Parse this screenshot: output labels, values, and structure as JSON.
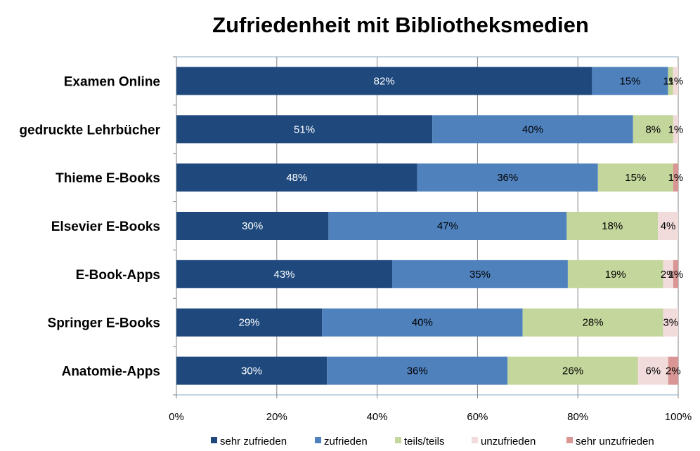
{
  "chart_data": {
    "type": "bar",
    "orientation": "horizontal",
    "stacked": "percent",
    "title": "Zufriedenheit mit Bibliotheksmedien",
    "categories": [
      "Examen Online",
      "gedruckte Lehrbücher",
      "Thieme E-Books",
      "Elsevier E-Books",
      "E-Book-Apps",
      "Springer E-Books",
      "Anatomie-Apps"
    ],
    "series": [
      {
        "name": "sehr zufrieden",
        "color": "#1f497d",
        "label_color": "#ffffff",
        "values": [
          82,
          51,
          48,
          30,
          43,
          29,
          30
        ],
        "labels": [
          "82%",
          "51%",
          "48%",
          "30%",
          "43%",
          "29%",
          "30%"
        ]
      },
      {
        "name": "zufrieden",
        "color": "#4f81bd",
        "label_color": "#000000",
        "values": [
          15,
          40,
          36,
          47,
          35,
          40,
          36
        ],
        "labels": [
          "15%",
          "40%",
          "36%",
          "47%",
          "35%",
          "40%",
          "36%"
        ]
      },
      {
        "name": "teils/teils",
        "color": "#c3d69b",
        "label_color": "#000000",
        "values": [
          1,
          8,
          15,
          18,
          19,
          28,
          26
        ],
        "labels": [
          "1%",
          "8%",
          "15%",
          "18%",
          "19%",
          "28%",
          "26%"
        ]
      },
      {
        "name": "unzufrieden",
        "color": "#f2dcdb",
        "label_color": "#000000",
        "values": [
          1,
          1,
          0,
          4,
          2,
          3,
          6
        ],
        "labels": [
          "1%",
          "1%",
          "",
          "4%",
          "2%",
          "3%",
          "6%"
        ]
      },
      {
        "name": "sehr unzufrieden",
        "color": "#d99694",
        "label_color": "#000000",
        "values": [
          0,
          0,
          1,
          0,
          1,
          0,
          2
        ],
        "labels": [
          "",
          "",
          "1%",
          "",
          "1%",
          "",
          "2%"
        ]
      }
    ],
    "xlim": [
      0,
      100
    ],
    "xticks": [
      "0%",
      "20%",
      "40%",
      "60%",
      "80%",
      "100%"
    ],
    "grid": true,
    "legend_position": "bottom"
  }
}
